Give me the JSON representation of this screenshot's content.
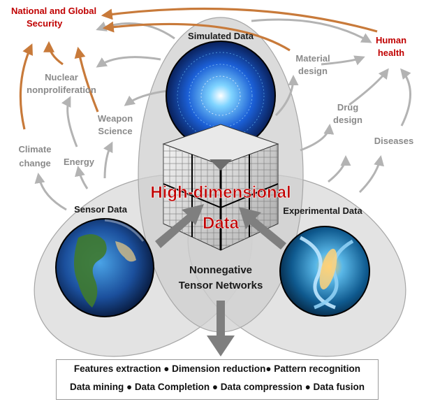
{
  "data_sources": {
    "simulated": "Simulated Data",
    "sensor": "Sensor Data",
    "experimental": "Experimental Data"
  },
  "center": {
    "title_line1": "High-dimensional",
    "title_line2": "Data",
    "method_line1": "Nonnegative",
    "method_line2": "Tensor Networks"
  },
  "applications": {
    "national_security_line1": "National and Global",
    "national_security_line2": "Security",
    "human_health_line1": "Human",
    "human_health_line2": "health",
    "nuclear_line1": "Nuclear",
    "nuclear_line2": "nonproliferation",
    "weapon_line1": "Weapon",
    "weapon_line2": "Science",
    "climate_line1": "Climate",
    "climate_line2": "change",
    "energy": "Energy",
    "material_line1": "Material",
    "material_line2": "design",
    "drug_line1": "Drug",
    "drug_line2": "design",
    "diseases": "Diseases"
  },
  "outputs": {
    "line1": "Features extraction ● Dimension reduction● Pattern recognition",
    "line2": "Data mining ● Data Completion ● Data compression ● Data fusion"
  },
  "colors": {
    "ellipse_fill": "#d9d9d9",
    "ellipse_stroke": "#a6a6a6",
    "arrow_grey": "#b3b3b3",
    "arrow_orange": "#c87a3a",
    "accent_red": "#c00000"
  }
}
